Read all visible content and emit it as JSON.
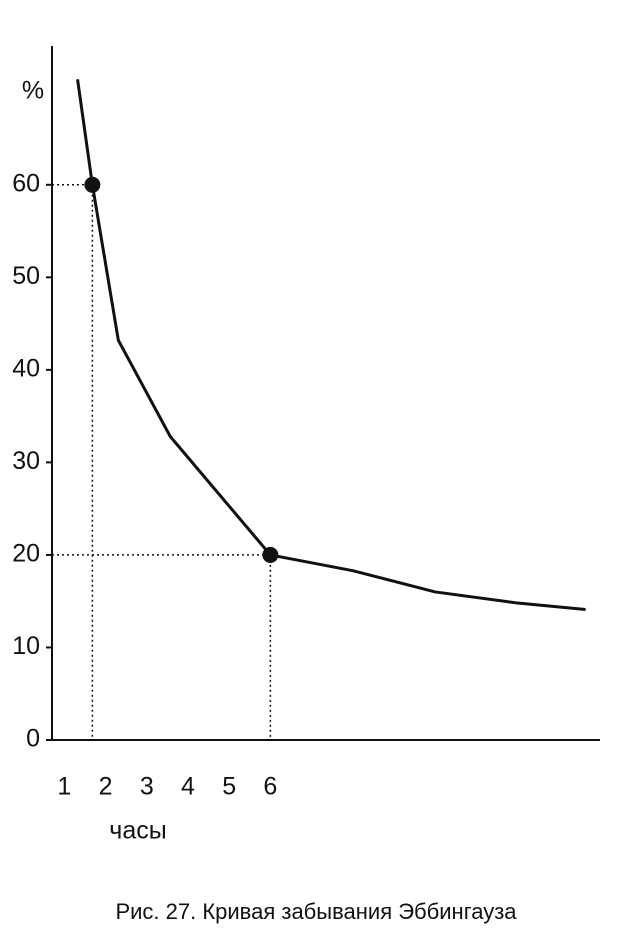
{
  "chart_data": {
    "type": "line",
    "caption": "Рис. 27. Кривая забывания Эббингауза",
    "ylabel": "%",
    "xlabel": "часы",
    "x": [
      1.32,
      1.68,
      2.31,
      3.57,
      6,
      8,
      10,
      12,
      13.65
    ],
    "series": [
      {
        "color": "#111111",
        "values": [
          71.4,
          60,
          43.2,
          32.8,
          20,
          18.3,
          16,
          14.8,
          14.1
        ]
      }
    ],
    "markers": [
      {
        "x": 1.68,
        "y": 60
      },
      {
        "x": 6,
        "y": 20
      }
    ],
    "xlim": [
      0.7,
      14
    ],
    "xticks": [
      1,
      2,
      3,
      4,
      5,
      6
    ],
    "ylim": [
      0,
      75
    ],
    "yticks": [
      0,
      10,
      20,
      30,
      40,
      50,
      60
    ]
  }
}
